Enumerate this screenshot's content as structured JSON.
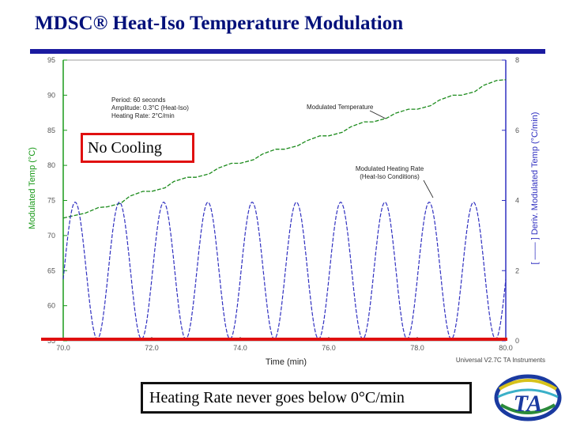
{
  "slide": {
    "title": "MDSC® Heat-Iso Temperature Modulation",
    "no_cooling_label": "No Cooling",
    "bottom_note": "Heating Rate never goes below 0°C/min",
    "logo_text": "TA",
    "accent_color": "#00107a",
    "box_color": "#e01010"
  },
  "chart_data": {
    "type": "line",
    "xlabel": "Time (min)",
    "ylabel_left": "Modulated Temp (°C)",
    "ylabel_right": "[ —— ] Deriv. Modulated Temp (°C/min)",
    "xlim": [
      70,
      80
    ],
    "ylim_left": [
      55,
      95
    ],
    "ylim_right": [
      0,
      8
    ],
    "x_ticks": [
      70,
      72,
      74,
      76,
      78,
      80
    ],
    "y_ticks_left": [
      55,
      60,
      65,
      70,
      75,
      80,
      85,
      90,
      95
    ],
    "y_ticks_right": [
      0,
      2,
      4,
      6,
      8
    ],
    "axis_colors": {
      "left": "#1a9a1a",
      "right": "#3030c0"
    },
    "zero_line_color": "#e01010",
    "annotations": {
      "params": [
        "Period: 60 seconds",
        "Amplitude: 0.3°C (Heat-Iso)",
        "Heating Rate: 2°C/min"
      ],
      "temp_label": "Modulated Temperature",
      "rate_label_lines": [
        "Modulated Heating Rate",
        "(Heat-Iso Conditions)"
      ],
      "footer": "Universal V2.7C TA Instruments"
    },
    "series": [
      {
        "name": "Modulated Temperature",
        "axis": "left",
        "style": "dashed",
        "color": "#1a8a1a",
        "x": [
          70.0,
          70.5,
          70.8,
          71.0,
          71.3,
          71.5,
          71.8,
          72.0,
          72.3,
          72.5,
          72.8,
          73.0,
          73.3,
          73.5,
          73.8,
          74.0,
          74.3,
          74.5,
          74.8,
          75.0,
          75.3,
          75.5,
          75.8,
          76.0,
          76.3,
          76.5,
          76.8,
          77.0,
          77.3,
          77.5,
          77.8,
          78.0,
          78.3,
          78.5,
          78.8,
          79.0,
          79.3,
          79.5,
          79.8,
          80.0
        ],
        "y": [
          72.5,
          73.2,
          74.0,
          74.1,
          74.6,
          75.6,
          76.3,
          76.3,
          76.8,
          77.7,
          78.3,
          78.3,
          78.8,
          79.6,
          80.3,
          80.3,
          80.8,
          81.6,
          82.3,
          82.3,
          82.8,
          83.5,
          84.2,
          84.2,
          84.7,
          85.5,
          86.2,
          86.2,
          86.7,
          87.4,
          88.0,
          88.0,
          88.5,
          89.3,
          90.0,
          90.0,
          90.5,
          91.4,
          92.1,
          92.2
        ]
      },
      {
        "name": "Modulated Heating Rate",
        "axis": "right",
        "style": "dashed",
        "color": "#3030c0",
        "x_start": 70.0,
        "x_end": 80.0,
        "period_min": 1.0,
        "first_peak": 70.27,
        "min": 0.05,
        "max": 3.95
      }
    ]
  }
}
